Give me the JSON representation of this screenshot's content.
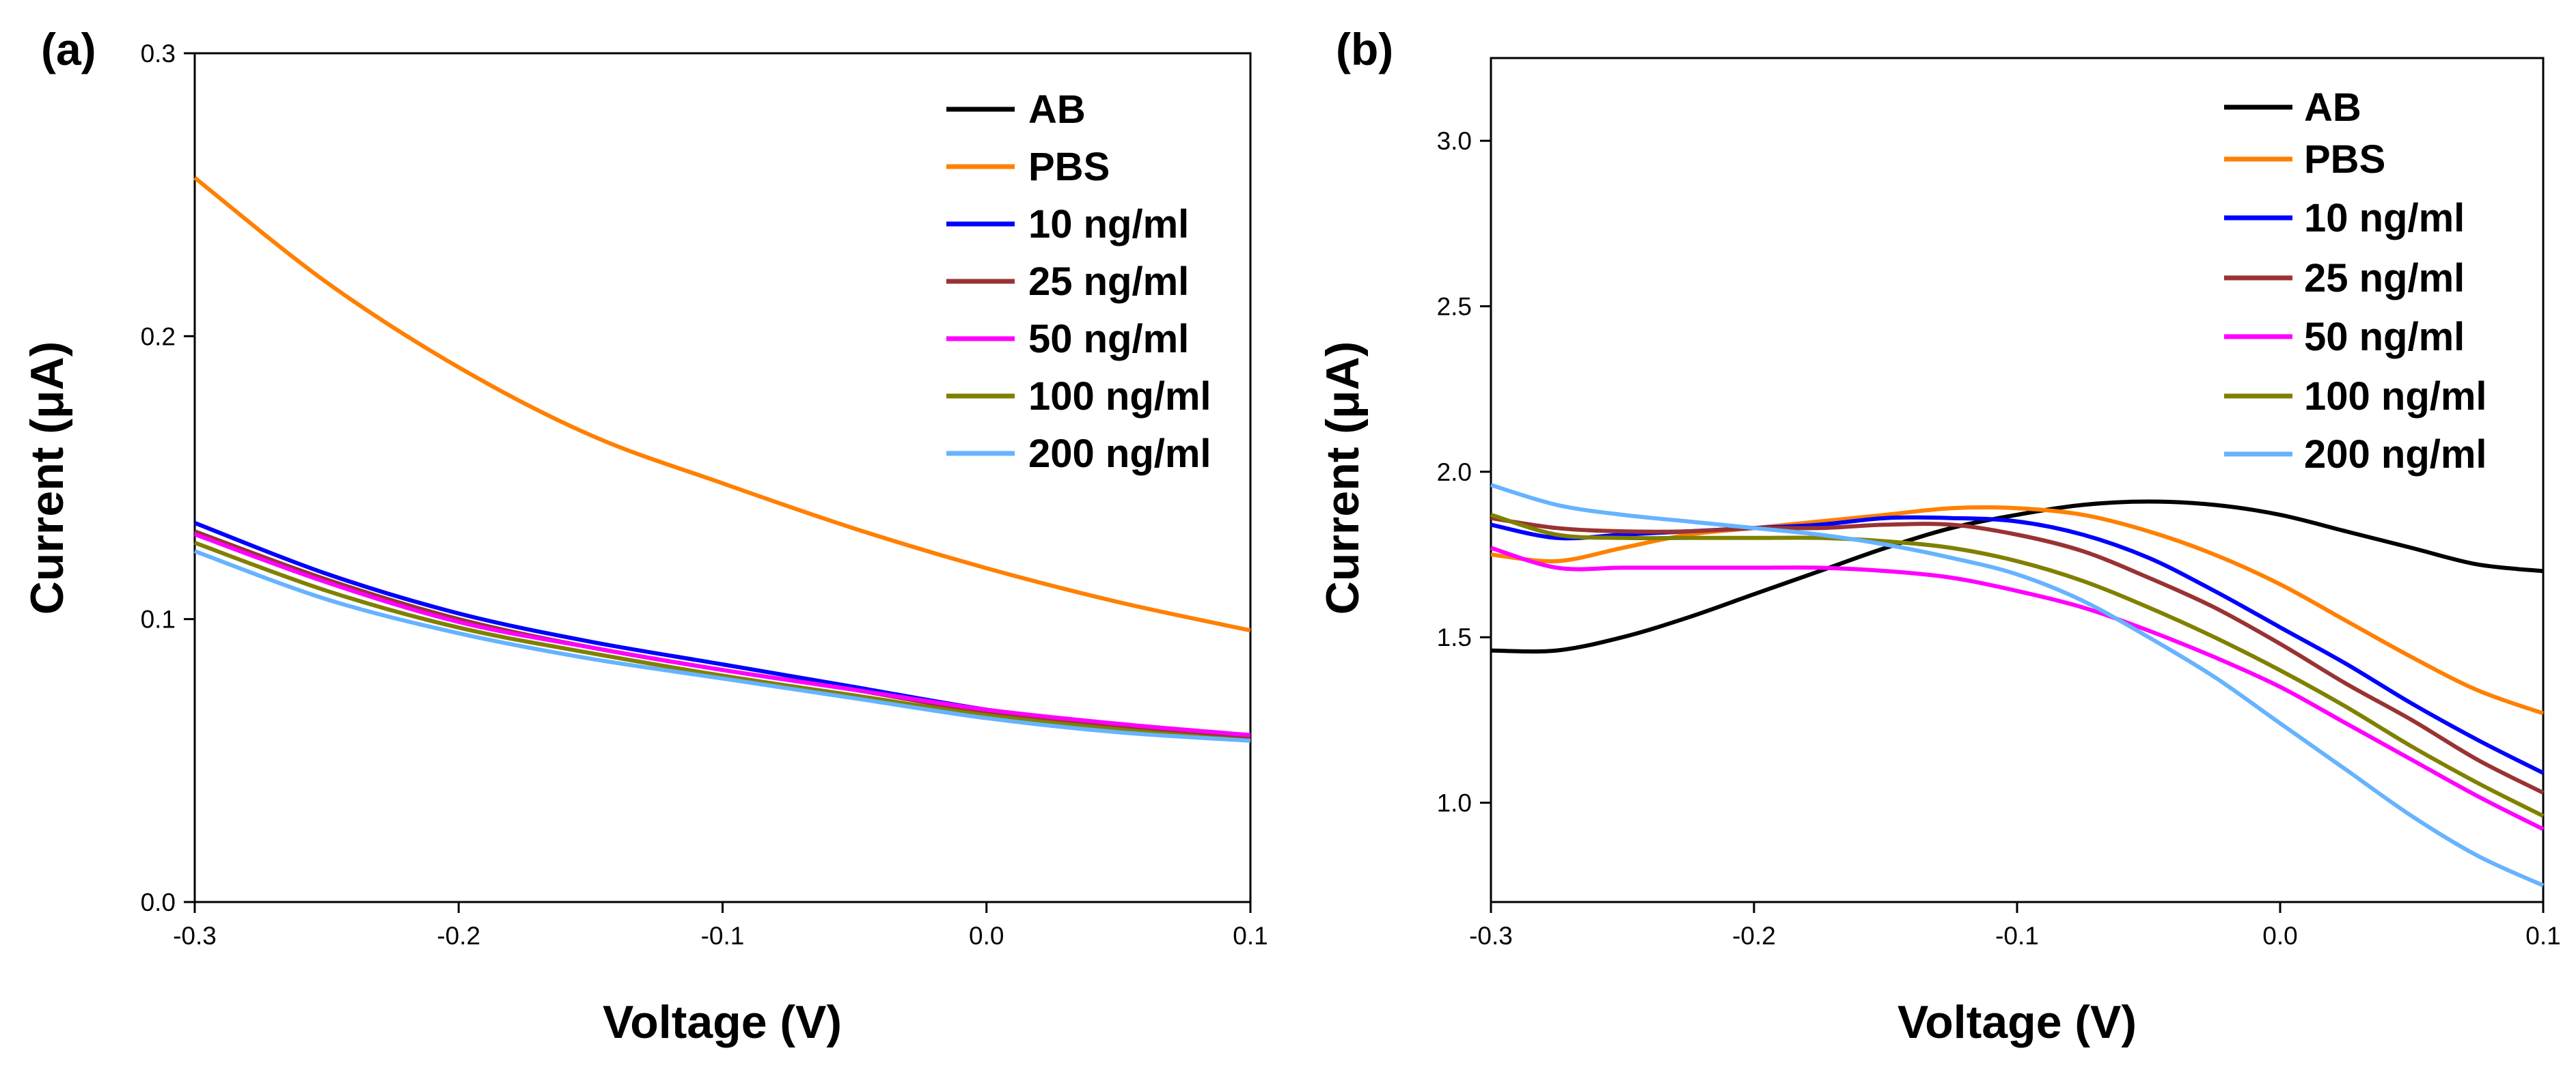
{
  "chart_data": [
    {
      "type": "line",
      "panel_label": "(a)",
      "xlabel": "Voltage (V)",
      "ylabel": "Current (μA)",
      "xlim": [
        -0.3,
        0.1
      ],
      "ylim": [
        0.0,
        0.3
      ],
      "xticks": [
        -0.3,
        -0.2,
        -0.1,
        0.0,
        0.1
      ],
      "xtick_labels": [
        "-0.3",
        "-0.2",
        "-0.1",
        "0.0",
        "0.1"
      ],
      "yticks": [
        0.0,
        0.1,
        0.2,
        0.3
      ],
      "ytick_labels": [
        "0.0",
        "0.1",
        "0.2",
        "0.3"
      ],
      "legend": "top-right",
      "x": [
        -0.3,
        -0.25,
        -0.2,
        -0.15,
        -0.1,
        -0.05,
        0.0,
        0.05,
        0.1
      ],
      "series": [
        {
          "name": "AB",
          "color": "#000000",
          "values": [
            null,
            null,
            null,
            null,
            null,
            null,
            null,
            null,
            null
          ]
        },
        {
          "name": "PBS",
          "color": "#ff8000",
          "values": [
            0.256,
            0.219,
            0.189,
            0.165,
            0.148,
            0.132,
            0.118,
            0.106,
            0.096
          ]
        },
        {
          "name": "10 ng/ml",
          "color": "#0000ff",
          "values": [
            0.134,
            0.116,
            0.102,
            0.092,
            0.084,
            0.076,
            0.068,
            0.062,
            0.058
          ]
        },
        {
          "name": "25 ng/ml",
          "color": "#993333",
          "values": [
            0.131,
            0.114,
            0.1,
            0.09,
            0.082,
            0.075,
            0.067,
            0.062,
            0.058
          ]
        },
        {
          "name": "50 ng/ml",
          "color": "#ff00ff",
          "values": [
            0.13,
            0.113,
            0.099,
            0.09,
            0.082,
            0.075,
            0.068,
            0.063,
            0.059
          ]
        },
        {
          "name": "100 ng/ml",
          "color": "#808000",
          "values": [
            0.127,
            0.11,
            0.097,
            0.088,
            0.08,
            0.073,
            0.066,
            0.061,
            0.057
          ]
        },
        {
          "name": "200 ng/ml",
          "color": "#66b3ff",
          "values": [
            0.124,
            0.107,
            0.095,
            0.086,
            0.079,
            0.072,
            0.065,
            0.06,
            0.057
          ]
        }
      ]
    },
    {
      "type": "line",
      "panel_label": "(b)",
      "xlabel": "Voltage (V)",
      "ylabel": "Current (μA)",
      "xlim": [
        -0.3,
        0.1
      ],
      "ylim": [
        0.7,
        3.25
      ],
      "xticks": [
        -0.3,
        -0.2,
        -0.1,
        0.0,
        0.1
      ],
      "xtick_labels": [
        "-0.3",
        "-0.2",
        "-0.1",
        "0.0",
        "0.1"
      ],
      "yticks": [
        1.0,
        1.5,
        2.0,
        2.5,
        3.0
      ],
      "ytick_labels": [
        "1.0",
        "1.5",
        "2.0",
        "2.5",
        "3.0"
      ],
      "legend": "top-right",
      "x": [
        -0.3,
        -0.275,
        -0.25,
        -0.225,
        -0.2,
        -0.175,
        -0.15,
        -0.125,
        -0.1,
        -0.075,
        -0.05,
        -0.025,
        0.0,
        0.025,
        0.05,
        0.075,
        0.1
      ],
      "series": [
        {
          "name": "AB",
          "color": "#000000",
          "values": [
            1.46,
            1.46,
            1.5,
            1.56,
            1.63,
            1.7,
            1.77,
            1.83,
            1.87,
            1.9,
            1.91,
            1.9,
            1.87,
            1.82,
            1.77,
            1.72,
            1.7
          ]
        },
        {
          "name": "PBS",
          "color": "#ff8000",
          "values": [
            1.75,
            1.73,
            1.77,
            1.81,
            1.83,
            1.85,
            1.87,
            1.89,
            1.89,
            1.87,
            1.82,
            1.75,
            1.66,
            1.55,
            1.44,
            1.34,
            1.27
          ]
        },
        {
          "name": "10 ng/ml",
          "color": "#0000ff",
          "values": [
            1.84,
            1.8,
            1.81,
            1.82,
            1.83,
            1.84,
            1.86,
            1.86,
            1.85,
            1.81,
            1.74,
            1.64,
            1.53,
            1.42,
            1.3,
            1.19,
            1.09
          ]
        },
        {
          "name": "25 ng/ml",
          "color": "#993333",
          "values": [
            1.86,
            1.83,
            1.82,
            1.82,
            1.83,
            1.83,
            1.84,
            1.84,
            1.81,
            1.76,
            1.68,
            1.59,
            1.48,
            1.36,
            1.25,
            1.13,
            1.03
          ]
        },
        {
          "name": "50 ng/ml",
          "color": "#ff00ff",
          "values": [
            1.77,
            1.71,
            1.71,
            1.71,
            1.71,
            1.71,
            1.7,
            1.68,
            1.64,
            1.59,
            1.52,
            1.44,
            1.35,
            1.24,
            1.13,
            1.02,
            0.92
          ]
        },
        {
          "name": "100 ng/ml",
          "color": "#808000",
          "values": [
            1.87,
            1.81,
            1.8,
            1.8,
            1.8,
            1.8,
            1.79,
            1.77,
            1.73,
            1.67,
            1.59,
            1.5,
            1.4,
            1.29,
            1.17,
            1.06,
            0.96
          ]
        },
        {
          "name": "200 ng/ml",
          "color": "#66b3ff",
          "values": [
            1.96,
            1.9,
            1.87,
            1.85,
            1.83,
            1.81,
            1.78,
            1.74,
            1.69,
            1.61,
            1.5,
            1.38,
            1.24,
            1.1,
            0.96,
            0.84,
            0.75
          ]
        }
      ]
    }
  ]
}
